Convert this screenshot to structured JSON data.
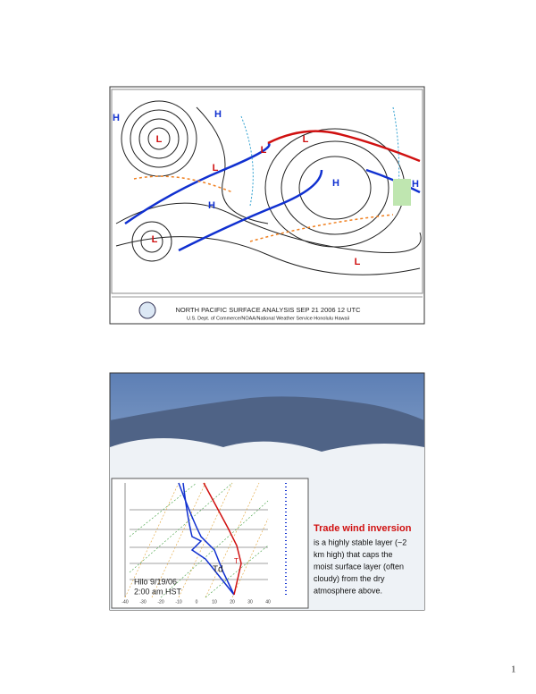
{
  "slides": [
    {
      "title": "NORTH PACIFIC SURFACE ANALYSIS SEP 21 2006 12 UTC",
      "credit": "U.S. Dept. of Commerce/NOAA/National Weather Service Honolulu Hawaii",
      "map_labels": [
        "H",
        "H",
        "H",
        "H",
        "H",
        "L",
        "L",
        "L",
        "L",
        "L",
        "L"
      ]
    },
    {
      "heading": "Trade wind inversion",
      "body_lines": [
        "is a highly stable layer (~2",
        "km high) that caps the",
        "moist surface layer (often",
        "cloudy) from the dry",
        "atmosphere above."
      ],
      "station": "Hilo 9/19/06",
      "time": "2:00 am HST",
      "dewpoint_label": "Td",
      "temp_label": "T",
      "x_ticks": [
        "-40",
        "-30",
        "-20",
        "-10",
        "0",
        "10",
        "20",
        "30",
        "40"
      ]
    }
  ],
  "page_number": "1"
}
